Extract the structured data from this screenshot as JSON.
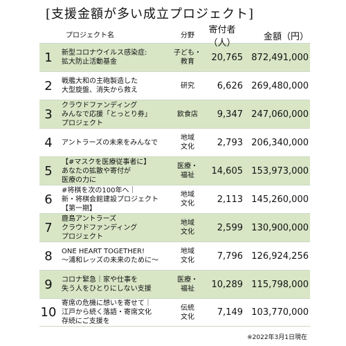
{
  "title": "[支援金額が多い成立プロジェクト]",
  "headers": {
    "name": "プロジェクト名",
    "field": "分野",
    "donors": "寄付者（人）",
    "amount": "金額（円）"
  },
  "rows": [
    {
      "rank": "1",
      "name": [
        "新型コロナウイルス感染症:",
        "拡大防止活動基金"
      ],
      "field": [
        "子ども・",
        "教育"
      ],
      "donors": "20,765",
      "amount": "872,491,000"
    },
    {
      "rank": "2",
      "name": [
        "戦艦大和の主砲製造した",
        "大型旋盤、消失から救え"
      ],
      "field": [
        "研究"
      ],
      "donors": "6,626",
      "amount": "269,480,000"
    },
    {
      "rank": "3",
      "name": [
        "クラウドファンディング",
        "みんなで応援「とっとり券」",
        "プロジェクト"
      ],
      "field": [
        "飲食店"
      ],
      "donors": "9,347",
      "amount": "247,060,000"
    },
    {
      "rank": "4",
      "name": [
        "アントラーズの未来をみんなで"
      ],
      "field": [
        "地域",
        "文化"
      ],
      "donors": "2,793",
      "amount": "206,340,000"
    },
    {
      "rank": "5",
      "name": [
        "【#マスクを医療従事者に】",
        "あなたの拡散や寄付が",
        "医療の力に"
      ],
      "field": [
        "医療・",
        "福祉"
      ],
      "donors": "14,605",
      "amount": "153,973,000"
    },
    {
      "rank": "6",
      "name": [
        "#将棋を次の100年へ｜",
        "新・将棋会館建設プロジェクト",
        "【第一期】"
      ],
      "field": [
        "地域",
        "文化"
      ],
      "donors": "2,113",
      "amount": "145,260,000"
    },
    {
      "rank": "7",
      "name": [
        "鹿島アントラーズ",
        "クラウドファンディング",
        "プロジェクト"
      ],
      "field": [
        "地域",
        "文化"
      ],
      "donors": "2,599",
      "amount": "130,900,000"
    },
    {
      "rank": "8",
      "name": [
        "ONE HEART TOGETHER!",
        "〜浦和レッズの未来のために〜"
      ],
      "field": [
        "地域",
        "文化"
      ],
      "donors": "7,796",
      "amount": "126,924,256"
    },
    {
      "rank": "9",
      "name": [
        "コロナ緊急｜家や仕事を",
        "失う人をひとりにしない支援"
      ],
      "field": [
        "医療・",
        "福祉"
      ],
      "donors": "10,289",
      "amount": "115,798,000"
    },
    {
      "rank": "10",
      "name": [
        "寄席の危機に想いを寄せて｜",
        "江戸から続く落語・寄席文化",
        "存続にご支援を"
      ],
      "field": [
        "伝統",
        "文化"
      ],
      "donors": "7,149",
      "amount": "103,770,000"
    }
  ],
  "note": "※2022年3月1日現在",
  "colors": {
    "row_alt": "#d8e6c6",
    "row_plain": "#ffffff",
    "border": "#cfd7c6"
  }
}
